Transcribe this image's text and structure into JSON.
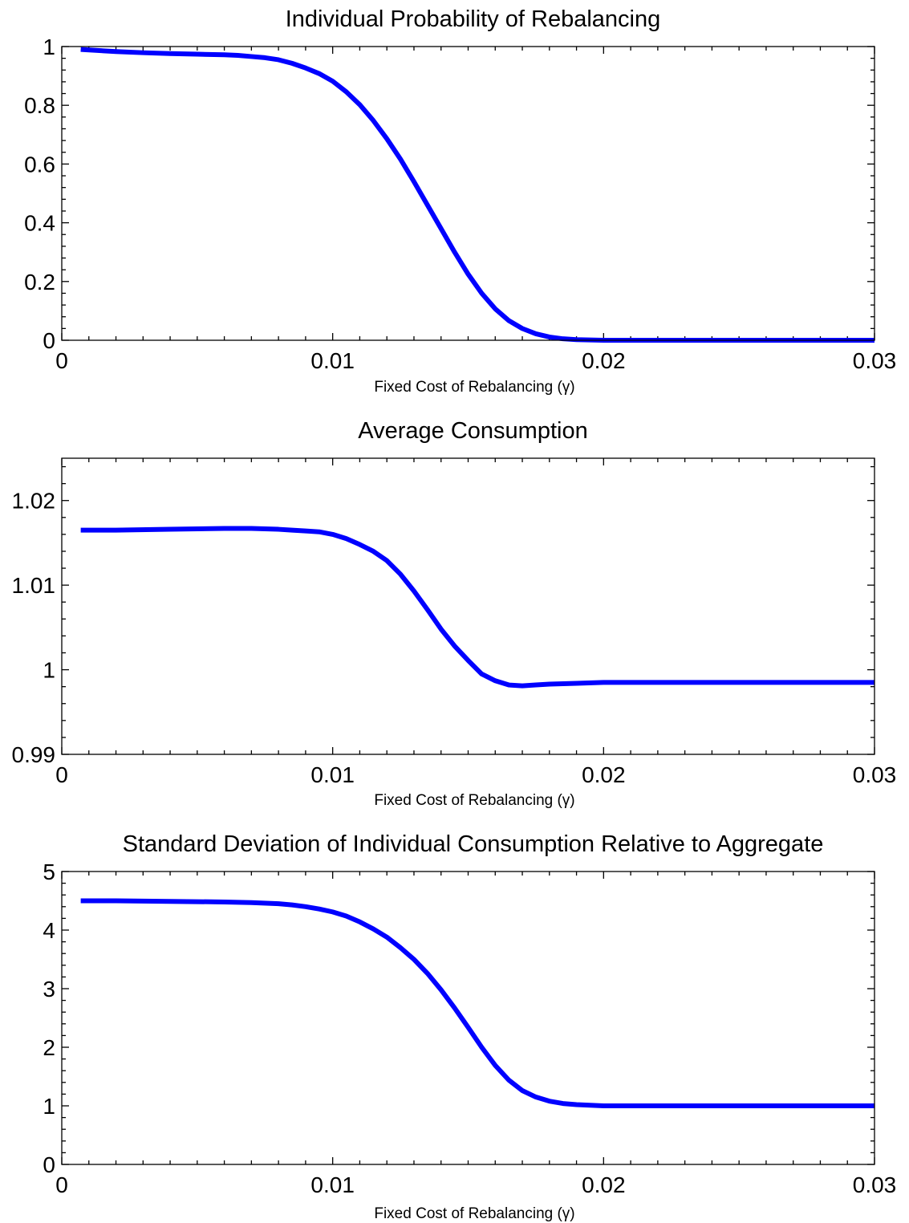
{
  "chart_data": [
    {
      "type": "line",
      "title": "Individual Probability of Rebalancing",
      "xlabel": "Fixed Cost of Rebalancing (γ)",
      "ylabel": "",
      "xlim": [
        0,
        0.03
      ],
      "ylim": [
        0,
        1
      ],
      "xticks": [
        0,
        0.01,
        0.02,
        0.03
      ],
      "xtick_labels": [
        "0",
        "0.01",
        "0.02",
        "0.03"
      ],
      "yticks": [
        0,
        0.2,
        0.4,
        0.6,
        0.8,
        1
      ],
      "ytick_labels": [
        "0",
        "0.2",
        "0.4",
        "0.6",
        "0.8",
        "1"
      ],
      "grid": false,
      "line_color": "#0000ff",
      "series": [
        {
          "x": [
            0.0007,
            0.002,
            0.003,
            0.004,
            0.005,
            0.006,
            0.0065,
            0.007,
            0.0075,
            0.008,
            0.0085,
            0.009,
            0.0095,
            0.01,
            0.0105,
            0.011,
            0.0115,
            0.012,
            0.0125,
            0.013,
            0.0135,
            0.014,
            0.0145,
            0.015,
            0.0155,
            0.016,
            0.0165,
            0.017,
            0.0175,
            0.018,
            0.0185,
            0.019,
            0.0195,
            0.02,
            0.022,
            0.025,
            0.028,
            0.03
          ],
          "y": [
            0.99,
            0.983,
            0.979,
            0.976,
            0.974,
            0.972,
            0.97,
            0.966,
            0.962,
            0.955,
            0.943,
            0.927,
            0.908,
            0.882,
            0.846,
            0.802,
            0.748,
            0.686,
            0.617,
            0.54,
            0.46,
            0.38,
            0.3,
            0.225,
            0.16,
            0.107,
            0.067,
            0.04,
            0.022,
            0.011,
            0.005,
            0.002,
            0.001,
            0.0,
            0.0,
            0.0,
            0.0,
            0.0
          ]
        }
      ]
    },
    {
      "type": "line",
      "title": "Average Consumption",
      "xlabel": "Fixed Cost of Rebalancing (γ)",
      "ylabel": "",
      "xlim": [
        0,
        0.03
      ],
      "ylim": [
        0.99,
        1.025
      ],
      "xticks": [
        0,
        0.01,
        0.02,
        0.03
      ],
      "xtick_labels": [
        "0",
        "0.01",
        "0.02",
        "0.03"
      ],
      "yticks": [
        0.99,
        1,
        1.01,
        1.02
      ],
      "ytick_labels": [
        "0.99",
        "1",
        "1.01",
        "1.02"
      ],
      "grid": false,
      "line_color": "#0000ff",
      "series": [
        {
          "x": [
            0.0007,
            0.002,
            0.004,
            0.006,
            0.007,
            0.008,
            0.0085,
            0.009,
            0.0095,
            0.01,
            0.0105,
            0.011,
            0.0115,
            0.012,
            0.0125,
            0.013,
            0.0135,
            0.014,
            0.0145,
            0.015,
            0.0155,
            0.016,
            0.0165,
            0.017,
            0.0175,
            0.018,
            0.019,
            0.02,
            0.022,
            0.025,
            0.028,
            0.03
          ],
          "y": [
            1.0165,
            1.0165,
            1.0166,
            1.0167,
            1.0167,
            1.0166,
            1.0165,
            1.0164,
            1.0163,
            1.016,
            1.0155,
            1.0148,
            1.014,
            1.0129,
            1.0113,
            1.0093,
            1.0071,
            1.0048,
            1.0028,
            1.0011,
            0.9995,
            0.9987,
            0.9982,
            0.9981,
            0.9982,
            0.9983,
            0.9984,
            0.9985,
            0.9985,
            0.9985,
            0.9985,
            0.9985
          ]
        }
      ]
    },
    {
      "type": "line",
      "title": "Standard Deviation of Individual Consumption Relative to Aggregate",
      "xlabel": "Fixed Cost of Rebalancing (γ)",
      "ylabel": "",
      "xlim": [
        0,
        0.03
      ],
      "ylim": [
        0,
        5
      ],
      "xticks": [
        0,
        0.01,
        0.02,
        0.03
      ],
      "xtick_labels": [
        "0",
        "0.01",
        "0.02",
        "0.03"
      ],
      "yticks": [
        0,
        1,
        2,
        3,
        4,
        5
      ],
      "ytick_labels": [
        "0",
        "1",
        "2",
        "3",
        "4",
        "5"
      ],
      "grid": false,
      "line_color": "#0000ff",
      "series": [
        {
          "x": [
            0.0007,
            0.002,
            0.004,
            0.006,
            0.007,
            0.008,
            0.0085,
            0.009,
            0.0095,
            0.01,
            0.0105,
            0.011,
            0.0115,
            0.012,
            0.0125,
            0.013,
            0.0135,
            0.014,
            0.0145,
            0.015,
            0.0155,
            0.016,
            0.0165,
            0.017,
            0.0175,
            0.018,
            0.0185,
            0.019,
            0.0195,
            0.02,
            0.021,
            0.022,
            0.025,
            0.028,
            0.03
          ],
          "y": [
            4.5,
            4.5,
            4.49,
            4.48,
            4.47,
            4.45,
            4.43,
            4.4,
            4.36,
            4.31,
            4.24,
            4.14,
            4.02,
            3.88,
            3.7,
            3.5,
            3.26,
            2.98,
            2.67,
            2.34,
            2.0,
            1.69,
            1.44,
            1.26,
            1.15,
            1.08,
            1.04,
            1.02,
            1.01,
            1.0,
            1.0,
            1.0,
            1.0,
            1.0,
            1.0
          ]
        }
      ]
    }
  ]
}
